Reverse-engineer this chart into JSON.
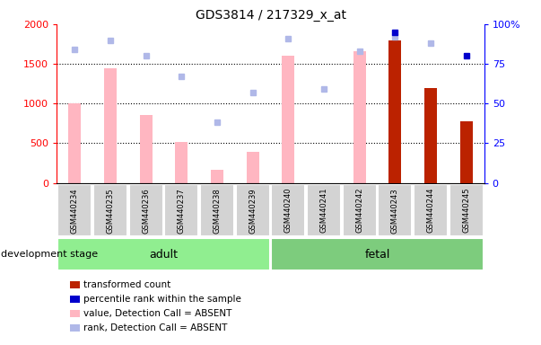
{
  "title": "GDS3814 / 217329_x_at",
  "samples": [
    "GSM440234",
    "GSM440235",
    "GSM440236",
    "GSM440237",
    "GSM440238",
    "GSM440239",
    "GSM440240",
    "GSM440241",
    "GSM440242",
    "GSM440243",
    "GSM440244",
    "GSM440245"
  ],
  "groups": {
    "adult": [
      0,
      1,
      2,
      3,
      4,
      5
    ],
    "fetal": [
      6,
      7,
      8,
      9,
      10,
      11
    ]
  },
  "ylim_left": [
    0,
    2000
  ],
  "ylim_right": [
    0,
    100
  ],
  "group_adult_label": "adult",
  "group_fetal_label": "fetal",
  "adult_color": "#90ee90",
  "fetal_color": "#7dcc7d",
  "bar_absent_color": "#ffb6c1",
  "rank_absent_color": "#b0b8e8",
  "transformed_color": "#bb2200",
  "percentile_color": "#0000cc",
  "tick_label_bg": "#d3d3d3",
  "legend_items": [
    {
      "label": "transformed count",
      "color": "#bb2200"
    },
    {
      "label": "percentile rank within the sample",
      "color": "#0000cc"
    },
    {
      "label": "value, Detection Call = ABSENT",
      "color": "#ffb6c1"
    },
    {
      "label": "rank, Detection Call = ABSENT",
      "color": "#b0b8e8"
    }
  ],
  "dev_stage_label": "development stage",
  "data_transformed": [
    {
      "idx": 9,
      "val": 1800
    },
    {
      "idx": 10,
      "val": 1200
    },
    {
      "idx": 11,
      "val": 780
    }
  ],
  "data_percentile": [
    {
      "idx": 9,
      "val": 95
    },
    {
      "idx": 11,
      "val": 80
    }
  ],
  "data_value_absent": [
    {
      "idx": 0,
      "val": 1000
    },
    {
      "idx": 1,
      "val": 1440
    },
    {
      "idx": 2,
      "val": 860
    },
    {
      "idx": 3,
      "val": 510
    },
    {
      "idx": 4,
      "val": 160
    },
    {
      "idx": 5,
      "val": 390
    },
    {
      "idx": 6,
      "val": 1600
    },
    {
      "idx": 8,
      "val": 1660
    }
  ],
  "data_rank_absent": [
    {
      "idx": 0,
      "val": 84
    },
    {
      "idx": 1,
      "val": 90
    },
    {
      "idx": 2,
      "val": 80
    },
    {
      "idx": 3,
      "val": 67
    },
    {
      "idx": 4,
      "val": 38
    },
    {
      "idx": 5,
      "val": 57
    },
    {
      "idx": 6,
      "val": 91
    },
    {
      "idx": 7,
      "val": 59
    },
    {
      "idx": 8,
      "val": 83
    },
    {
      "idx": 9,
      "val": 92
    },
    {
      "idx": 10,
      "val": 88
    }
  ]
}
